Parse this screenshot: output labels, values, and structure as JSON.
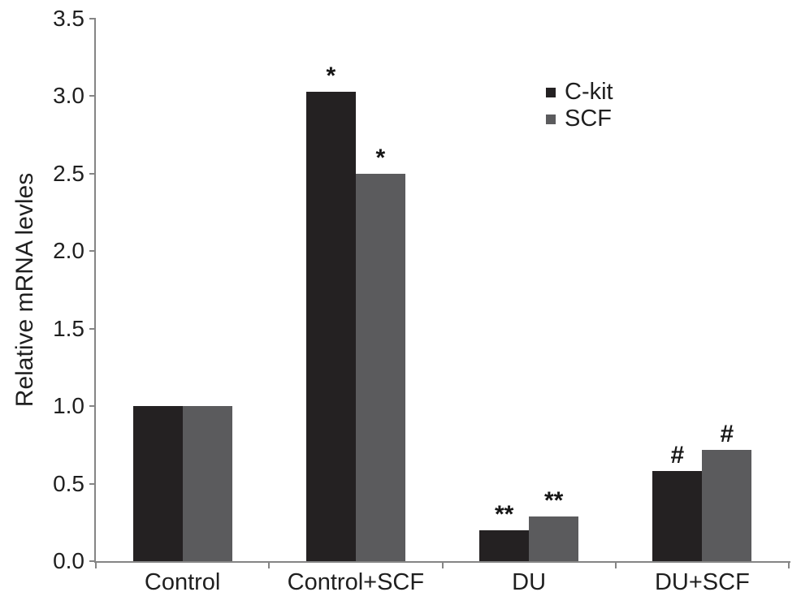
{
  "figure": {
    "background": "#ffffff",
    "text_color": "#1f1f1f",
    "axis_color": "#858585"
  },
  "chart_data": {
    "type": "bar",
    "title": "",
    "xlabel": "",
    "ylabel": "Relative mRNA levles",
    "ylim": [
      0,
      3.5
    ],
    "ytick_step": 0.5,
    "ytick_labels": [
      "0.0",
      "0.5",
      "1.0",
      "1.5",
      "2.0",
      "2.5",
      "3.0",
      "3.5"
    ],
    "categories": [
      "Control",
      "Control+SCF",
      "DU",
      "DU+SCF"
    ],
    "series": [
      {
        "name": "C-kit",
        "color": "#242122",
        "values": [
          1.0,
          3.03,
          0.2,
          0.58
        ],
        "annotations": [
          "",
          "*",
          "**",
          "#"
        ]
      },
      {
        "name": "SCF",
        "color": "#5b5b5d",
        "values": [
          1.0,
          2.5,
          0.29,
          0.72
        ],
        "annotations": [
          "",
          "*",
          "**",
          "#"
        ]
      }
    ],
    "legend": {
      "position": "top-right",
      "entries": [
        "C-kit",
        "SCF"
      ]
    },
    "grid": false
  }
}
